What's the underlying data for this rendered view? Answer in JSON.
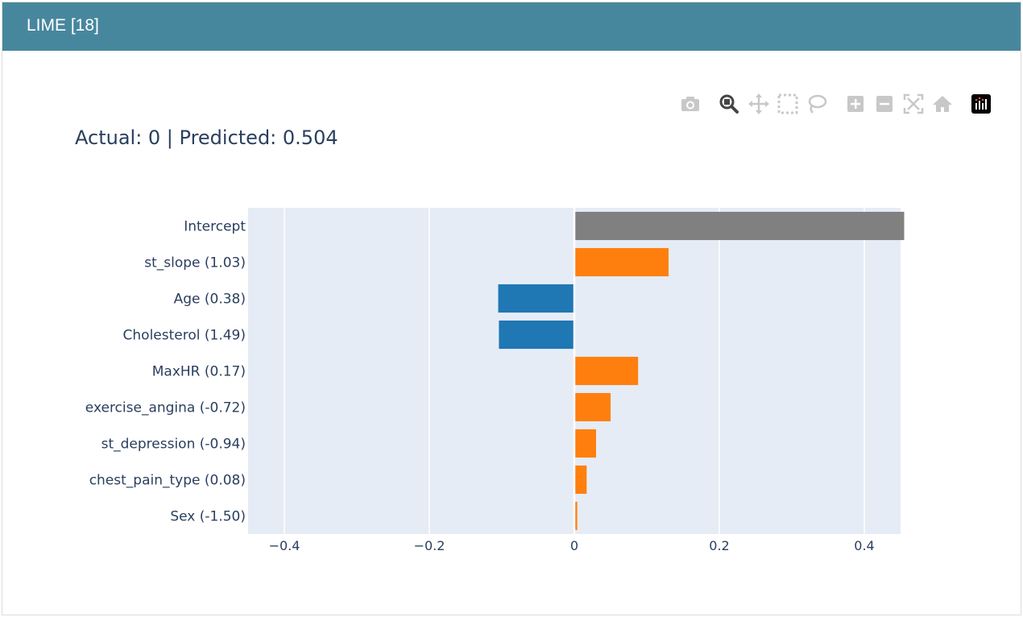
{
  "panel": {
    "title": "LIME [18]"
  },
  "modebar": {
    "buttons": [
      {
        "name": "camera-icon",
        "active": false
      },
      {
        "name": "zoom-icon",
        "active": true
      },
      {
        "name": "pan-icon",
        "active": false
      },
      {
        "name": "box-select-icon",
        "active": false
      },
      {
        "name": "lasso-select-icon",
        "active": false
      },
      {
        "name": "zoom-in-icon",
        "active": false
      },
      {
        "name": "zoom-out-icon",
        "active": false
      },
      {
        "name": "autoscale-icon",
        "active": false
      },
      {
        "name": "reset-axes-icon",
        "active": false
      },
      {
        "name": "plotly-logo-icon",
        "active": false
      }
    ]
  },
  "chart_data": {
    "type": "bar",
    "orientation": "horizontal",
    "title": "Actual: 0 | Predicted: 0.504",
    "categories": [
      "Intercept",
      "st_slope (1.03)",
      "Age (0.38)",
      "Cholesterol (1.49)",
      "MaxHR (0.17)",
      "exercise_angina (-0.72)",
      "st_depression (-0.94)",
      "chest_pain_type (0.08)",
      "Sex (-1.50)"
    ],
    "values": [
      0.455,
      0.13,
      -0.105,
      -0.104,
      0.088,
      0.05,
      0.03,
      0.017,
      0.004
    ],
    "colors": [
      "#808080",
      "#ff7f0e",
      "#1f77b4",
      "#1f77b4",
      "#ff7f0e",
      "#ff7f0e",
      "#ff7f0e",
      "#ff7f0e",
      "#ff7f0e"
    ],
    "xlim": [
      -0.45,
      0.45
    ],
    "xticks": [
      -0.4,
      -0.2,
      0,
      0.2,
      0.4
    ],
    "xtick_labels": [
      "−0.4",
      "−0.2",
      "0",
      "0.2",
      "0.4"
    ],
    "xlabel": "",
    "ylabel": "",
    "grid": true,
    "plot_bgcolor": "#e5ecf6"
  }
}
